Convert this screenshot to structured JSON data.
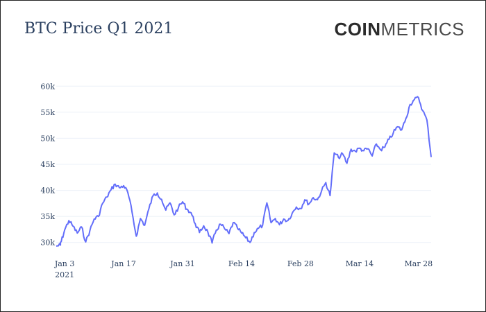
{
  "header": {
    "title": "BTC Price Q1 2021",
    "logo": {
      "bold": "COIN",
      "light": "METRICS"
    }
  },
  "colors": {
    "line": "#636efa",
    "grid": "#ebf0f8",
    "text": "#2a3f5f"
  },
  "chart_data": {
    "type": "line",
    "title": "BTC Price Q1 2021",
    "xlabel": "",
    "ylabel": "",
    "grid": true,
    "legend": "none",
    "xlim": [
      "2021-01-01",
      "2021-03-31"
    ],
    "ylim": [
      28500,
      61500
    ],
    "x_ticks": [
      {
        "date": "2021-01-03",
        "label": "Jan 3",
        "sublabel": "2021"
      },
      {
        "date": "2021-01-17",
        "label": "Jan 17"
      },
      {
        "date": "2021-01-31",
        "label": "Jan 31"
      },
      {
        "date": "2021-02-14",
        "label": "Feb 14"
      },
      {
        "date": "2021-02-28",
        "label": "Feb 28"
      },
      {
        "date": "2021-03-14",
        "label": "Mar 14"
      },
      {
        "date": "2021-03-28",
        "label": "Mar 28"
      }
    ],
    "y_ticks": [
      {
        "value": 30000,
        "label": "30k"
      },
      {
        "value": 35000,
        "label": "35k"
      },
      {
        "value": 40000,
        "label": "40k"
      },
      {
        "value": 45000,
        "label": "45k"
      },
      {
        "value": 50000,
        "label": "50k"
      },
      {
        "value": 55000,
        "label": "55k"
      },
      {
        "value": 60000,
        "label": "60k"
      }
    ],
    "series": [
      {
        "points": [
          [
            "2021-01-01",
            29300
          ],
          [
            "2021-01-02",
            29500
          ],
          [
            "2021-01-02",
            30200
          ],
          [
            "2021-01-03",
            32400
          ],
          [
            "2021-01-04",
            34200
          ],
          [
            "2021-01-05",
            33100
          ],
          [
            "2021-01-06",
            31800
          ],
          [
            "2021-01-07",
            33000
          ],
          [
            "2021-01-08",
            30100
          ],
          [
            "2021-01-09",
            32300
          ],
          [
            "2021-01-10",
            34500
          ],
          [
            "2021-01-11",
            35000
          ],
          [
            "2021-01-12",
            37500
          ],
          [
            "2021-01-13",
            38700
          ],
          [
            "2021-01-14",
            40100
          ],
          [
            "2021-01-15",
            41200
          ],
          [
            "2021-01-16",
            40500
          ],
          [
            "2021-01-17",
            40900
          ],
          [
            "2021-01-18",
            39600
          ],
          [
            "2021-01-19",
            35800
          ],
          [
            "2021-01-20",
            31200
          ],
          [
            "2021-01-21",
            34600
          ],
          [
            "2021-01-22",
            33300
          ],
          [
            "2021-01-23",
            36500
          ],
          [
            "2021-01-24",
            39000
          ],
          [
            "2021-01-25",
            39500
          ],
          [
            "2021-01-26",
            38300
          ],
          [
            "2021-01-27",
            36200
          ],
          [
            "2021-01-28",
            37600
          ],
          [
            "2021-01-29",
            35300
          ],
          [
            "2021-01-30",
            36700
          ],
          [
            "2021-01-31",
            37800
          ],
          [
            "2021-02-01",
            36400
          ],
          [
            "2021-02-02",
            35700
          ],
          [
            "2021-02-03",
            33600
          ],
          [
            "2021-02-04",
            31900
          ],
          [
            "2021-02-05",
            33200
          ],
          [
            "2021-02-06",
            32000
          ],
          [
            "2021-02-07",
            29900
          ],
          [
            "2021-02-08",
            32400
          ],
          [
            "2021-02-09",
            33500
          ],
          [
            "2021-02-10",
            32600
          ],
          [
            "2021-02-11",
            31700
          ],
          [
            "2021-02-12",
            33800
          ],
          [
            "2021-02-13",
            32800
          ],
          [
            "2021-02-14",
            31800
          ],
          [
            "2021-02-15",
            30900
          ],
          [
            "2021-02-16",
            30000
          ],
          [
            "2021-02-17",
            31900
          ],
          [
            "2021-02-18",
            32700
          ],
          [
            "2021-02-19",
            33300
          ],
          [
            "2021-02-20",
            37600
          ],
          [
            "2021-02-21",
            33800
          ],
          [
            "2021-02-22",
            34600
          ],
          [
            "2021-02-23",
            33400
          ],
          [
            "2021-02-24",
            34500
          ],
          [
            "2021-02-25",
            34200
          ],
          [
            "2021-02-26",
            35600
          ],
          [
            "2021-02-27",
            36800
          ],
          [
            "2021-02-28",
            36500
          ],
          [
            "2021-03-01",
            38200
          ],
          [
            "2021-03-02",
            37400
          ],
          [
            "2021-03-03",
            38600
          ],
          [
            "2021-03-04",
            38200
          ],
          [
            "2021-03-05",
            39900
          ],
          [
            "2021-03-06",
            41500
          ],
          [
            "2021-03-07",
            39000
          ],
          [
            "2021-03-08",
            47200
          ],
          [
            "2021-03-09",
            46300
          ],
          [
            "2021-03-10",
            47000
          ],
          [
            "2021-03-11",
            45200
          ],
          [
            "2021-03-12",
            47900
          ],
          [
            "2021-03-13",
            47500
          ],
          [
            "2021-03-14",
            48100
          ],
          [
            "2021-03-15",
            47600
          ],
          [
            "2021-03-16",
            48000
          ],
          [
            "2021-03-17",
            46600
          ],
          [
            "2021-03-18",
            48900
          ],
          [
            "2021-03-19",
            47800
          ],
          [
            "2021-03-20",
            48300
          ],
          [
            "2021-03-21",
            49800
          ],
          [
            "2021-03-22",
            51000
          ],
          [
            "2021-03-23",
            52200
          ],
          [
            "2021-03-24",
            51600
          ],
          [
            "2021-03-25",
            53800
          ],
          [
            "2021-03-26",
            56500
          ],
          [
            "2021-03-27",
            57400
          ],
          [
            "2021-03-28",
            57800
          ],
          [
            "2021-03-29",
            55300
          ],
          [
            "2021-03-30",
            53500
          ],
          [
            "2021-03-31",
            46400
          ]
        ]
      }
    ]
  }
}
